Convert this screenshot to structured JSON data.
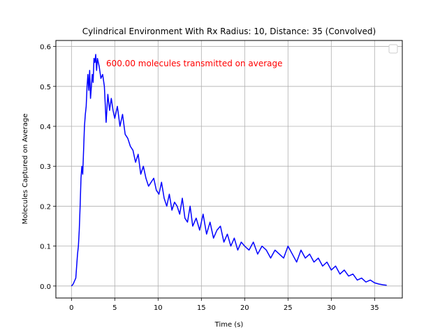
{
  "chart_data": {
    "type": "line",
    "title": "Cylindrical Environment With Rx Radius: 10, Distance: 35 (Convolved)",
    "xlabel": "Time (s)",
    "ylabel": "Molecules Captured on Average",
    "xlim": [
      -1.8,
      38.2
    ],
    "ylim": [
      -0.03,
      0.615
    ],
    "xticks": [
      0,
      5,
      10,
      15,
      20,
      25,
      30,
      35
    ],
    "yticks": [
      0.0,
      0.1,
      0.2,
      0.3,
      0.4,
      0.5,
      0.6
    ],
    "xtick_labels": [
      "0",
      "5",
      "10",
      "15",
      "20",
      "25",
      "30",
      "35"
    ],
    "ytick_labels": [
      "0.0",
      "0.1",
      "0.2",
      "0.3",
      "0.4",
      "0.5",
      "0.6"
    ],
    "grid": true,
    "legend": "top-right",
    "annotation": "600.00 molecules transmitted on average",
    "series": [
      {
        "color": "#0000ff",
        "x": [
          0,
          0.2,
          0.4,
          0.5,
          0.6,
          0.7,
          0.8,
          0.9,
          1.0,
          1.1,
          1.2,
          1.3,
          1.4,
          1.5,
          1.6,
          1.7,
          1.8,
          1.9,
          2.0,
          2.1,
          2.2,
          2.3,
          2.4,
          2.5,
          2.6,
          2.7,
          2.8,
          2.9,
          3.0,
          3.2,
          3.4,
          3.6,
          3.8,
          4.0,
          4.2,
          4.4,
          4.6,
          4.8,
          5.0,
          5.3,
          5.6,
          5.9,
          6.2,
          6.5,
          6.8,
          7.1,
          7.4,
          7.7,
          8.0,
          8.3,
          8.6,
          8.9,
          9.2,
          9.5,
          9.8,
          10.1,
          10.4,
          10.7,
          11.0,
          11.3,
          11.6,
          11.9,
          12.2,
          12.5,
          12.8,
          13.1,
          13.4,
          13.7,
          14.0,
          14.4,
          14.8,
          15.2,
          15.6,
          16.0,
          16.4,
          16.8,
          17.2,
          17.6,
          18.0,
          18.4,
          18.8,
          19.2,
          19.6,
          20.0,
          20.5,
          21.0,
          21.5,
          22.0,
          22.5,
          23.0,
          23.5,
          24.0,
          24.5,
          25.0,
          25.5,
          26.0,
          26.5,
          27.0,
          27.5,
          28.0,
          28.5,
          29.0,
          29.5,
          30.0,
          30.5,
          31.0,
          31.5,
          32.0,
          32.5,
          33.0,
          33.5,
          34.0,
          34.5,
          35.0,
          35.5,
          36.0,
          36.4
        ],
        "y": [
          0.0,
          0.005,
          0.015,
          0.02,
          0.05,
          0.08,
          0.1,
          0.14,
          0.2,
          0.27,
          0.3,
          0.28,
          0.34,
          0.4,
          0.43,
          0.45,
          0.5,
          0.53,
          0.49,
          0.54,
          0.47,
          0.5,
          0.53,
          0.51,
          0.57,
          0.56,
          0.58,
          0.54,
          0.57,
          0.55,
          0.52,
          0.53,
          0.5,
          0.41,
          0.48,
          0.44,
          0.47,
          0.44,
          0.42,
          0.45,
          0.4,
          0.43,
          0.38,
          0.37,
          0.35,
          0.34,
          0.31,
          0.33,
          0.28,
          0.3,
          0.27,
          0.25,
          0.26,
          0.27,
          0.24,
          0.23,
          0.26,
          0.22,
          0.2,
          0.23,
          0.19,
          0.21,
          0.2,
          0.18,
          0.22,
          0.17,
          0.16,
          0.2,
          0.15,
          0.17,
          0.14,
          0.18,
          0.13,
          0.16,
          0.12,
          0.14,
          0.15,
          0.11,
          0.13,
          0.1,
          0.12,
          0.09,
          0.11,
          0.1,
          0.09,
          0.11,
          0.08,
          0.1,
          0.09,
          0.07,
          0.09,
          0.08,
          0.07,
          0.1,
          0.08,
          0.06,
          0.09,
          0.07,
          0.08,
          0.06,
          0.07,
          0.05,
          0.06,
          0.04,
          0.05,
          0.03,
          0.04,
          0.025,
          0.03,
          0.015,
          0.02,
          0.01,
          0.015,
          0.008,
          0.005,
          0.003,
          0.002
        ]
      }
    ]
  }
}
